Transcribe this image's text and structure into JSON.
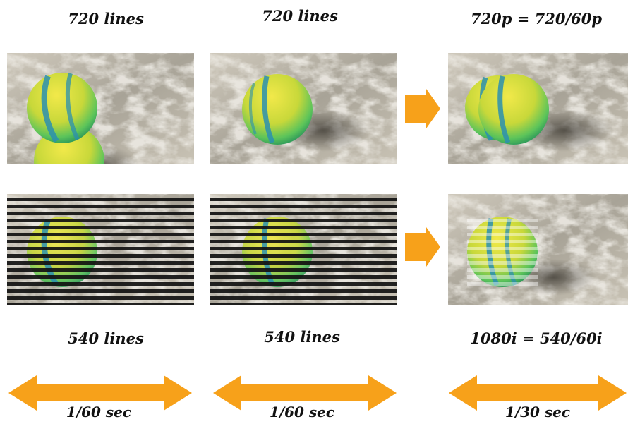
{
  "top_labels": [
    "720 lines",
    "720 lines",
    "720p = 720/60p"
  ],
  "bottom_labels": [
    "540 lines",
    "540 lines",
    "1080i = 540/60i"
  ],
  "time_labels": [
    "1/60 sec",
    "1/60 sec",
    "1/30 sec"
  ],
  "colors": {
    "arrow": "#f7a11a",
    "sand_light": "#ddd7ca",
    "sand_dark": "#8f8a80",
    "ball_yellow": "#e9e23a",
    "ball_green": "#5bc85a",
    "ball_stripe": "#2a8fb0",
    "scanline": "#111111"
  }
}
